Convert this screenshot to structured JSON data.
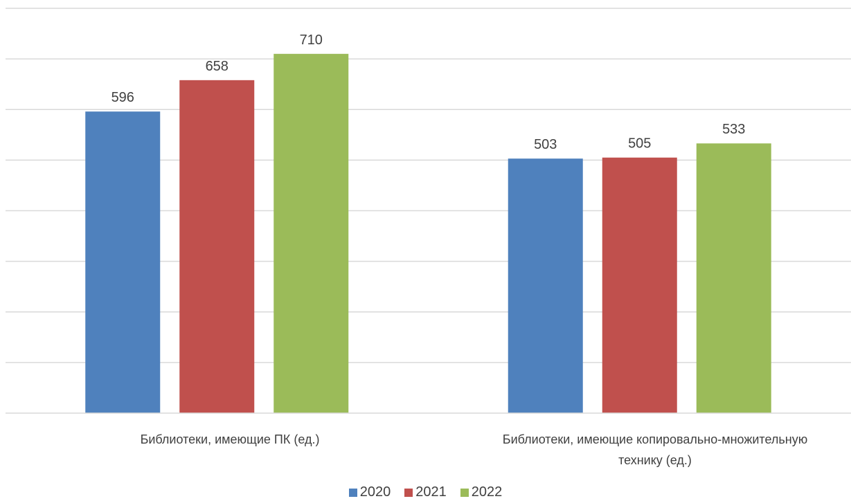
{
  "chart_data": {
    "type": "bar",
    "categories": [
      "Библиотеки, имеющие ПК (ед.)",
      "Библиотеки, имеющие копировально-множительную техникy (ед.)"
    ],
    "category_lines": [
      [
        "Библиотеки, имеющие ПК (ед.)"
      ],
      [
        "Библиотеки, имеющие копировально-множительную",
        "технику (ед.)"
      ]
    ],
    "series": [
      {
        "name": "2020",
        "color": "#4F81BD",
        "values": [
          596,
          503
        ]
      },
      {
        "name": "2021",
        "color": "#C0504D",
        "values": [
          658,
          505
        ]
      },
      {
        "name": "2022",
        "color": "#9BBB59",
        "values": [
          710,
          533
        ]
      }
    ],
    "ylim": [
      0,
      800
    ],
    "grid": true,
    "legend_position": "bottom",
    "title": "",
    "xlabel": "",
    "ylabel": ""
  }
}
